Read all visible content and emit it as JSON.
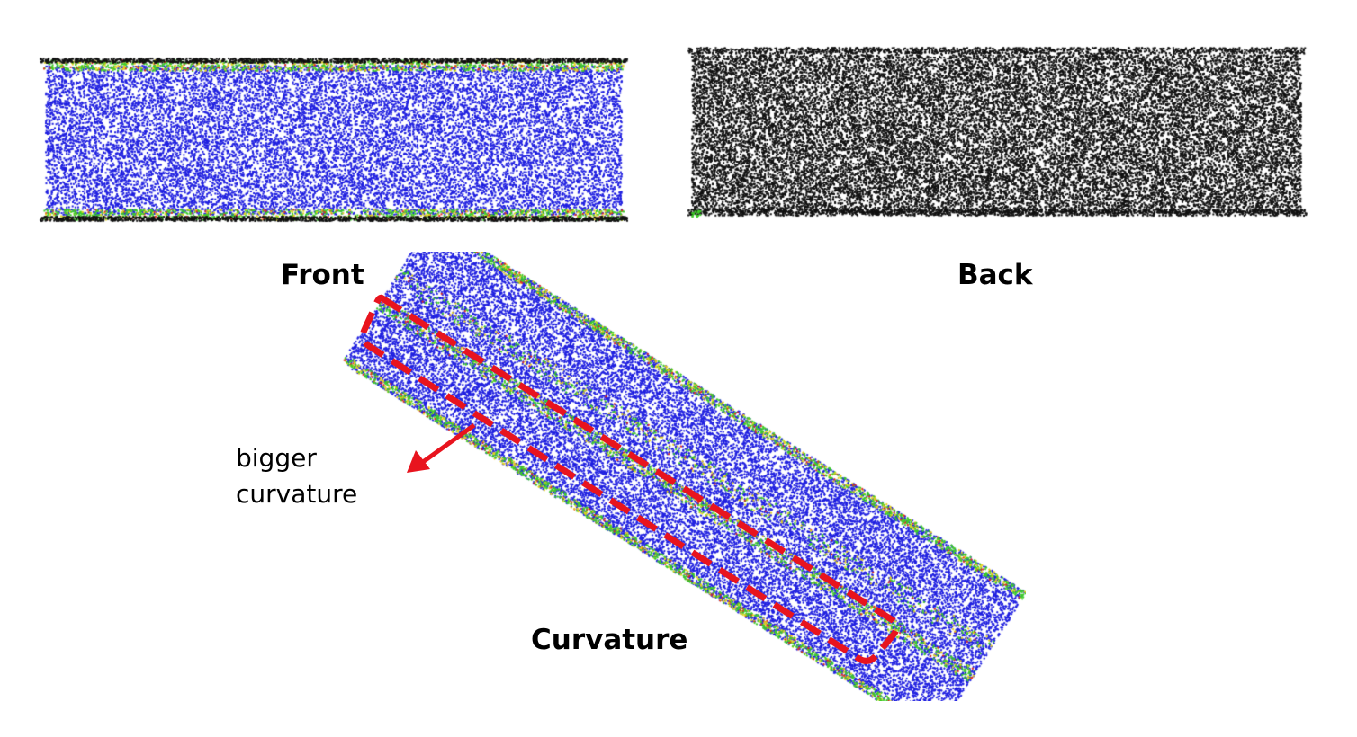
{
  "labels": {
    "front": "Front",
    "back": "Back",
    "curvature": "Curvature"
  },
  "annotation": {
    "line1": "bigger",
    "line2": "curvature"
  },
  "colors": {
    "interior_points": "#1f1fe0",
    "edge_green": "#3ccc28",
    "edge_yellow": "#e6d21e",
    "edge_red": "#e02a1e",
    "back_points": "#111111",
    "highlight": "#e8141e",
    "background": "#ffffff"
  },
  "icons": {
    "arrow": "red-arrow-icon",
    "highlight_box": "dashed-box-icon"
  }
}
